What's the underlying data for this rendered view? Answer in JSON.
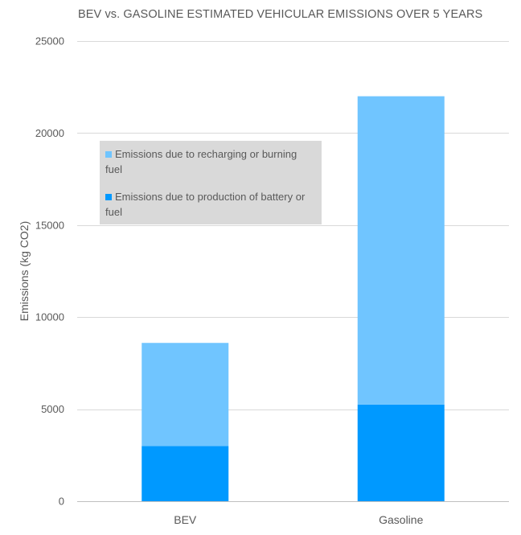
{
  "chart_data": {
    "type": "bar",
    "stacked": true,
    "title": "BEV vs. GASOLINE ESTIMATED VEHICULAR EMISSIONS OVER 5 YEARS",
    "xlabel": "",
    "ylabel": "Emissions (kg CO2)",
    "categories": [
      "BEV",
      "Gasoline"
    ],
    "ylim": [
      0,
      25000
    ],
    "yticks": [
      0,
      5000,
      10000,
      15000,
      20000,
      25000
    ],
    "grid": true,
    "legend_position": "upper-left",
    "series": [
      {
        "name": "Emissions due to production of battery or fuel",
        "values": [
          3000,
          5250
        ],
        "color": "#0099ff"
      },
      {
        "name": "Emissions due to recharging or burning fuel",
        "values": [
          5600,
          16750
        ],
        "color": "#70c5ff"
      }
    ],
    "legend_order": [
      1,
      0
    ]
  }
}
